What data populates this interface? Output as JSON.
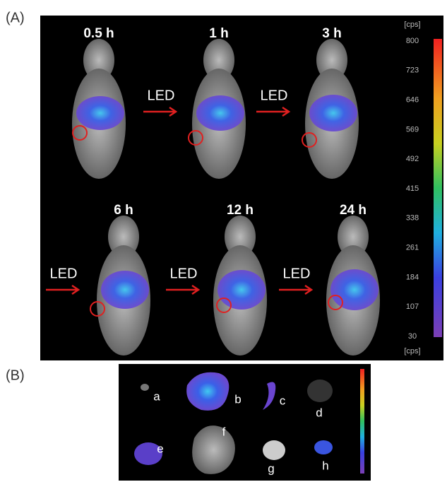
{
  "panel_a": {
    "label": "(A)",
    "images": [
      {
        "time": "0.5 h"
      },
      {
        "time": "1 h"
      },
      {
        "time": "3 h"
      },
      {
        "time": "6 h"
      },
      {
        "time": "12 h"
      },
      {
        "time": "24 h"
      }
    ],
    "arrows": [
      "LED",
      "LED",
      "LED",
      "LED",
      "LED"
    ],
    "colorbar": {
      "unit_top": "[cps]",
      "unit_bottom": "[cps]",
      "ticks": [
        800,
        723,
        646,
        569,
        492,
        415,
        338,
        261,
        184,
        107,
        30
      ]
    }
  },
  "panel_b": {
    "label": "(B)",
    "organs": [
      "a",
      "b",
      "c",
      "d",
      "e",
      "f",
      "g",
      "h"
    ]
  }
}
